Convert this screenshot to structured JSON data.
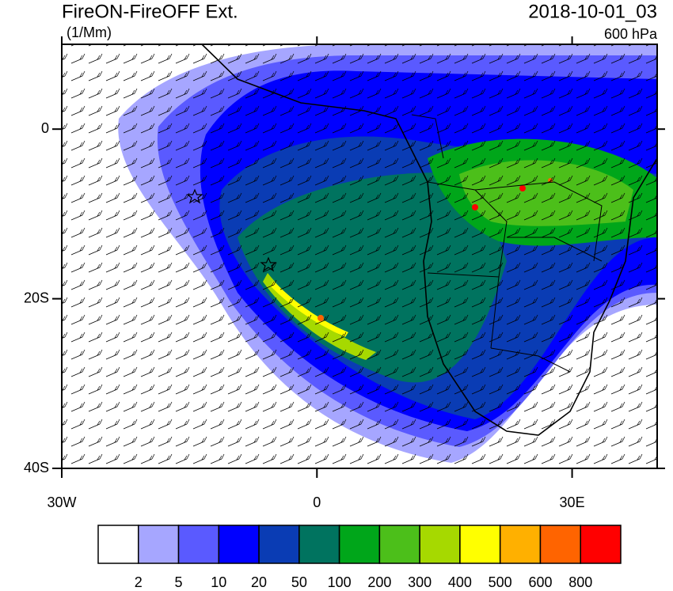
{
  "chart_data": {
    "type": "map",
    "title": "FireON-FireOFF Ext.",
    "units": "(1/Mm)",
    "datetime": "2018-10-01_03",
    "level": "600 hPa",
    "xlim": [
      -30,
      40
    ],
    "ylim": [
      -40,
      10
    ],
    "xticks": [
      {
        "value": -30,
        "label": "30W"
      },
      0,
      {
        "value": 30,
        "label": "30E"
      }
    ],
    "yticks": [
      0,
      {
        "value": -20,
        "label": "20S"
      },
      {
        "value": -40,
        "label": "40S"
      }
    ],
    "colorbar": {
      "levels": [
        2,
        5,
        10,
        20,
        50,
        100,
        200,
        300,
        400,
        500,
        600,
        800
      ],
      "colors": [
        "#ffffff",
        "#a6a6ff",
        "#5a5aff",
        "#0000ff",
        "#0a3cb4",
        "#00735f",
        "#00a61a",
        "#4cbf1a",
        "#a6d900",
        "#ffff00",
        "#ffb000",
        "#ff6400",
        "#ff0000"
      ]
    }
  }
}
